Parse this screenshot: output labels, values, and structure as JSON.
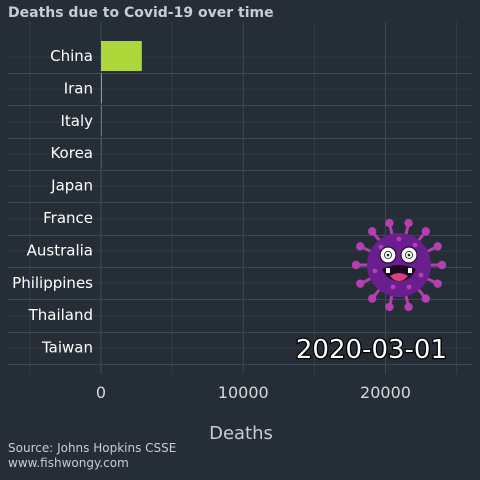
{
  "chart_data": {
    "type": "bar",
    "orientation": "horizontal",
    "title": "Deaths due to Covid-19 over time",
    "categories": [
      "China",
      "Iran",
      "Italy",
      "Korea",
      "Japan",
      "France",
      "Australia",
      "Philippines",
      "Thailand",
      "Taiwan"
    ],
    "values": [
      2870,
      54,
      34,
      17,
      6,
      2,
      1,
      1,
      0,
      0
    ],
    "xlabel": "Deaths",
    "ylabel": "",
    "xlim": [
      -5000,
      26000
    ],
    "xticks": [
      "0",
      "10000",
      "20000"
    ],
    "grid": true,
    "date_label": "2020-03-01",
    "bar_color": "#acd63a",
    "source_lines": [
      "Source: Johns Hopkins CSSE",
      "www.fishwongy.com"
    ]
  },
  "theme": {
    "background": "#252d36",
    "grid_color": "#3b4a55",
    "virus_color": "#6a1f8f",
    "virus_spike_color": "#b43fb1"
  },
  "decoration": {
    "icon": "coronavirus-cartoon-icon"
  }
}
